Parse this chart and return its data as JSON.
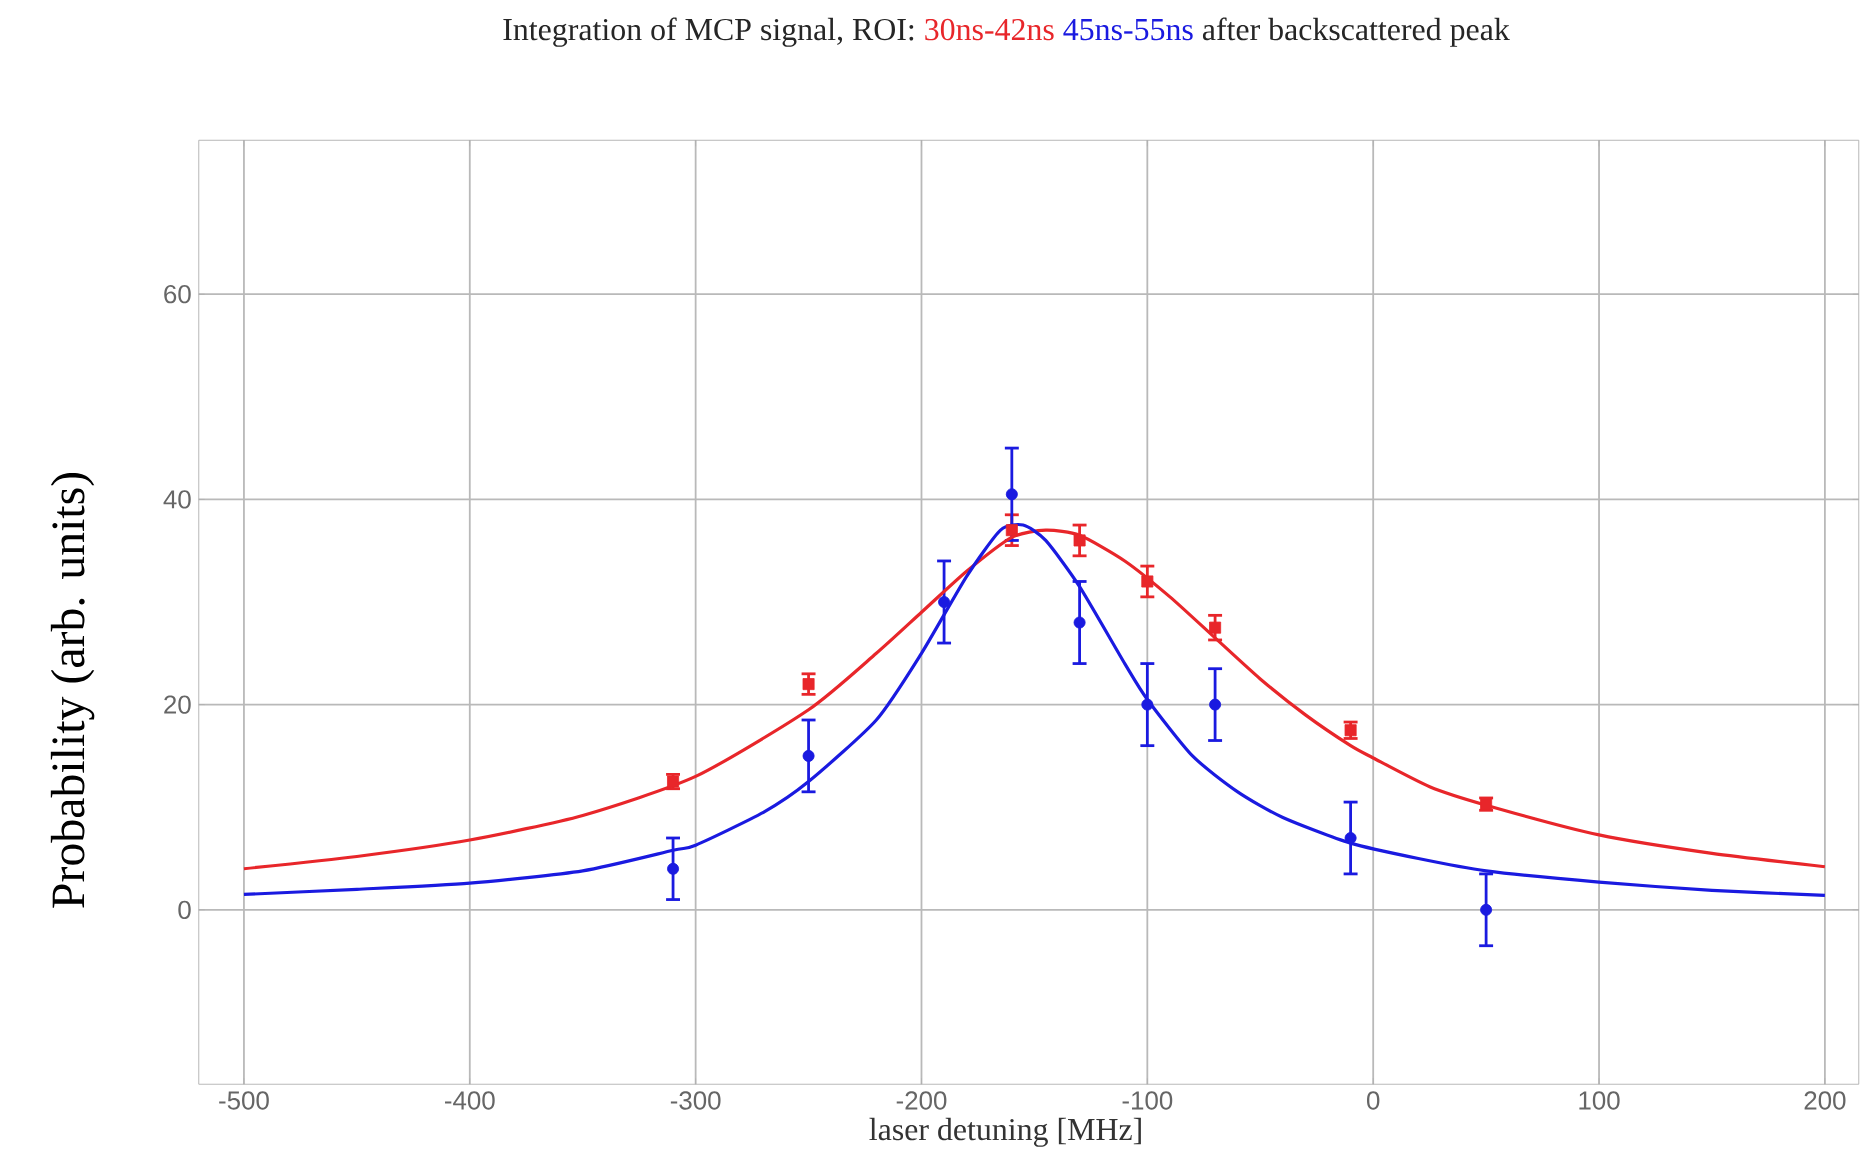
{
  "chart_data": {
    "type": "scatter",
    "title": "Integration of MCP signal, ROI:",
    "subtitle": "after backscattered peak",
    "xlabel": "laser detuning [MHz]",
    "ylabel": "Probability (arb. units)",
    "xlim": [
      -520,
      215
    ],
    "ylim": [
      -17,
      75
    ],
    "xticks": [
      -500,
      -400,
      -300,
      -200,
      -100,
      0,
      100,
      200
    ],
    "yticks": [
      0,
      20,
      40,
      60
    ],
    "grid": true,
    "legend": false,
    "series": [
      {
        "name": "30ns-42ns",
        "color": "#e8262a",
        "marker": "square",
        "x": [
          -310,
          -250,
          -160,
          -130,
          -100,
          -70,
          -10,
          50
        ],
        "values": [
          12.5,
          22,
          37,
          36,
          32,
          27.5,
          17.5,
          10.3
        ],
        "errors": [
          0.7,
          1,
          1.5,
          1.5,
          1.5,
          1.2,
          0.8,
          0.6
        ]
      },
      {
        "name": "45ns-55ns",
        "color": "#1a1ae0",
        "marker": "circle",
        "x": [
          -310,
          -250,
          -190,
          -160,
          -130,
          -100,
          -70,
          -10,
          50
        ],
        "values": [
          4,
          15,
          30,
          40.5,
          28,
          20,
          20,
          7,
          0
        ],
        "errors": [
          3,
          3.5,
          4,
          4.5,
          4,
          4,
          3.5,
          3.5,
          3.5
        ]
      },
      {
        "color": "#e8262a",
        "type": "line",
        "marker": "none",
        "x": [
          -500,
          -450,
          -400,
          -350,
          -300,
          -250,
          -220,
          -200,
          -180,
          -160,
          -145,
          -130,
          -110,
          -90,
          -70,
          -50,
          -30,
          -10,
          0,
          25,
          50,
          100,
          150,
          200
        ],
        "values": [
          4,
          5.2,
          6.8,
          9.2,
          13,
          19.5,
          25,
          29,
          33,
          36.3,
          37,
          36.5,
          34,
          30.5,
          26.5,
          22.5,
          19,
          16,
          14.8,
          12,
          10.2,
          7.3,
          5.5,
          4.2
        ]
      },
      {
        "color": "#1a1ae0",
        "type": "line",
        "marker": "none",
        "x": [
          -500,
          -450,
          -400,
          -350,
          -310,
          -300,
          -270,
          -250,
          -220,
          -200,
          -180,
          -165,
          -155,
          -145,
          -130,
          -110,
          -100,
          -80,
          -60,
          -40,
          -10,
          20,
          50,
          100,
          150,
          200
        ],
        "values": [
          1.5,
          2.0,
          2.6,
          3.8,
          5.8,
          6.3,
          9.5,
          12.5,
          18.5,
          25,
          32.5,
          37,
          37.5,
          36,
          31.5,
          24,
          20.5,
          15,
          11.5,
          9,
          6.5,
          5,
          3.8,
          2.7,
          1.9,
          1.4
        ]
      }
    ]
  }
}
